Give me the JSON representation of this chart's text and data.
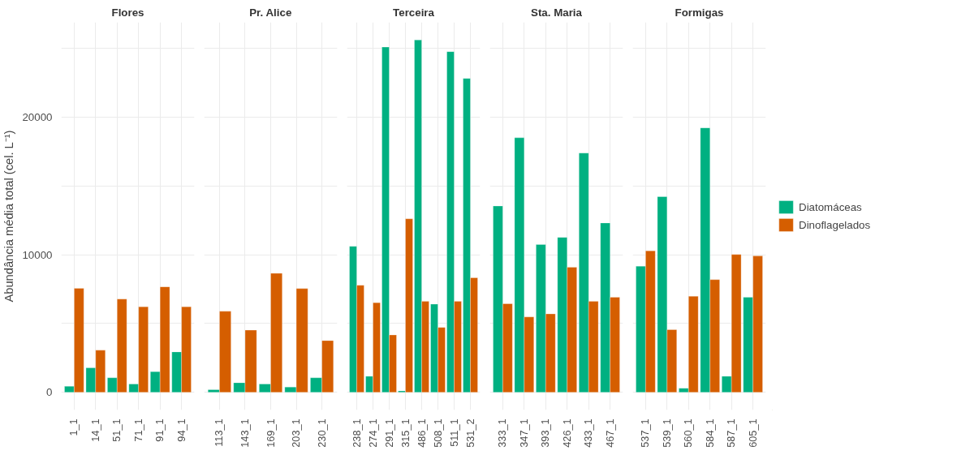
{
  "chart_data": [
    {
      "type": "bar",
      "title": "Flores",
      "ylabel": "Abundância média total (cel. L⁻¹)",
      "categories": [
        "1_1",
        "14_1",
        "51_1",
        "71_1",
        "91_1",
        "94_1"
      ],
      "series": [
        {
          "color": "#00b081",
          "values": [
            440,
            1780,
            1060,
            610,
            1500,
            2940
          ]
        },
        {
          "color": "#d55e00",
          "values": [
            7560,
            3060,
            6780,
            6220,
            7670,
            6220
          ]
        }
      ],
      "ylim": [
        -1280,
        26890
      ],
      "yticks": [
        0,
        {
          "value": 5000,
          "label": null
        },
        10000,
        {
          "value": 15000,
          "label": null
        },
        20000,
        {
          "value": 25000,
          "label": null
        }
      ],
      "grid": true
    },
    {
      "type": "bar",
      "title": "Pr. Alice",
      "categories": [
        "113_1",
        "143_1",
        "169_1",
        "203_1",
        "230_1"
      ],
      "series": [
        {
          "color": "#00b081",
          "values": [
            200,
            700,
            610,
            390,
            1060
          ]
        },
        {
          "color": "#d55e00",
          "values": [
            5890,
            4520,
            8650,
            7540,
            3760
          ]
        }
      ],
      "ylim": [
        -1280,
        26890
      ],
      "yticks": [
        0,
        {
          "value": 5000,
          "label": null
        },
        10000,
        {
          "value": 15000,
          "label": null
        },
        20000,
        {
          "value": 25000,
          "label": null
        }
      ],
      "grid": true,
      "tick_labels": "x"
    },
    {
      "type": "bar",
      "title": "Terceira",
      "categories": [
        "238_1",
        "274_1",
        "291_1",
        "315_1",
        "486_1",
        "508_1",
        "511_1",
        "531_2"
      ],
      "series": [
        {
          "color": "#00b081",
          "values": [
            10610,
            1170,
            25090,
            110,
            25610,
            6410,
            24760,
            22810
          ]
        },
        {
          "color": "#d55e00",
          "values": [
            7780,
            6520,
            4170,
            12610,
            6610,
            4720,
            6610,
            8330
          ]
        }
      ],
      "ylim": [
        -1280,
        26890
      ],
      "yticks": [
        0,
        {
          "value": 5000,
          "label": null
        },
        10000,
        {
          "value": 15000,
          "label": null
        },
        20000,
        {
          "value": 25000,
          "label": null
        }
      ],
      "grid": true,
      "tick_labels": "x"
    },
    {
      "type": "bar",
      "title": "Sta. Maria",
      "categories": [
        "333_1",
        "347_1",
        "393_1",
        "426_1",
        "433_1",
        "467_1"
      ],
      "series": [
        {
          "color": "#00b081",
          "values": [
            13540,
            18500,
            10740,
            11260,
            17390,
            12310
          ]
        },
        {
          "color": "#d55e00",
          "values": [
            6440,
            5480,
            5700,
            9090,
            6610,
            6910
          ]
        }
      ],
      "ylim": [
        -1280,
        26890
      ],
      "yticks": [
        0,
        {
          "value": 5000,
          "label": null
        },
        10000,
        {
          "value": 15000,
          "label": null
        },
        20000,
        {
          "value": 25000,
          "label": null
        }
      ],
      "grid": true,
      "tick_labels": "x"
    },
    {
      "type": "bar",
      "title": "Formigas",
      "categories": [
        "537_1",
        "539_1",
        "560_1",
        "584_1",
        "587_1",
        "605_1"
      ],
      "series": [
        {
          "name": "Diatomáceas",
          "color": "#00b081",
          "values": [
            9170,
            14220,
            300,
            19220,
            1170,
            6910
          ]
        },
        {
          "name": "Dinoflagelados",
          "color": "#d55e00",
          "values": [
            10280,
            4560,
            6980,
            8190,
            10020,
            9910
          ]
        }
      ],
      "ylim": [
        -1280,
        26890
      ],
      "yticks": [
        0,
        {
          "value": 5000,
          "label": null
        },
        10000,
        {
          "value": 15000,
          "label": null
        },
        20000,
        {
          "value": 25000,
          "label": null
        }
      ],
      "grid": true,
      "tick_labels": "x",
      "legend": "right"
    }
  ]
}
